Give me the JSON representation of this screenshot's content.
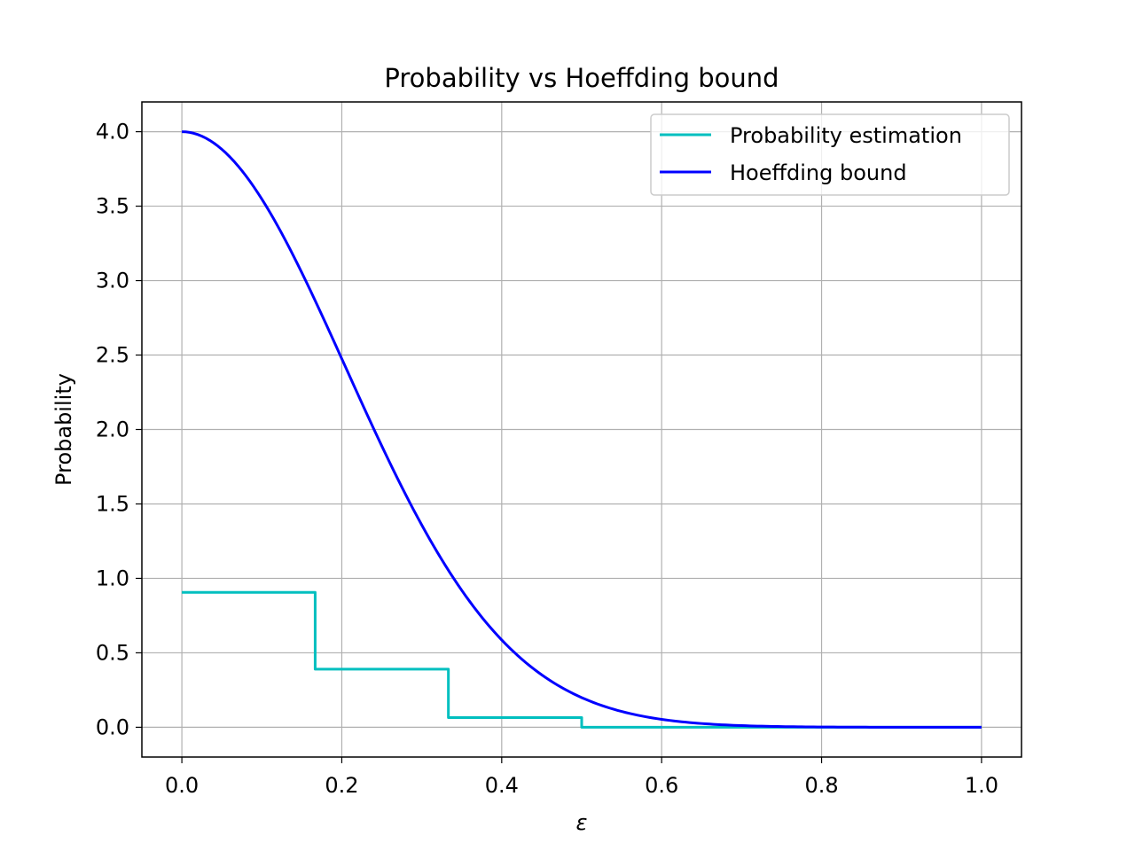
{
  "chart_data": {
    "type": "line",
    "title": "Probability vs Hoeffding bound",
    "xlabel": "ε",
    "ylabel": "Probability",
    "xlim": [
      -0.05,
      1.05
    ],
    "ylim": [
      -0.2,
      4.2
    ],
    "xticks": [
      0.0,
      0.2,
      0.4,
      0.6,
      0.8,
      1.0
    ],
    "xtick_labels": [
      "0.0",
      "0.2",
      "0.4",
      "0.6",
      "0.8",
      "1.0"
    ],
    "yticks": [
      0.0,
      0.5,
      1.0,
      1.5,
      2.0,
      2.5,
      3.0,
      3.5,
      4.0
    ],
    "ytick_labels": [
      "0.0",
      "0.5",
      "1.0",
      "1.5",
      "2.0",
      "2.5",
      "3.0",
      "3.5",
      "4.0"
    ],
    "grid": true,
    "legend_position": "top-right",
    "series": [
      {
        "name": "Probability estimation",
        "color": "#00bfbf",
        "style": "step",
        "x": [
          0.0,
          0.1667,
          0.1667,
          0.3333,
          0.3333,
          0.5,
          0.5,
          1.0
        ],
        "y": [
          0.906,
          0.906,
          0.39,
          0.39,
          0.065,
          0.065,
          0.0,
          0.0
        ]
      },
      {
        "name": "Hoeffding bound",
        "color": "#0000ff",
        "style": "line",
        "x": [
          0.0,
          0.05,
          0.1,
          0.15,
          0.2,
          0.25,
          0.3,
          0.35,
          0.4,
          0.45,
          0.5,
          0.55,
          0.6,
          0.65,
          0.7,
          0.75,
          0.8,
          0.85,
          0.9,
          0.95,
          1.0
        ],
        "y": [
          4.0,
          3.88,
          3.55,
          3.08,
          2.51,
          1.96,
          1.43,
          0.98,
          0.59,
          0.35,
          0.2,
          0.11,
          0.06,
          0.03,
          0.015,
          0.006,
          0.003,
          0.001,
          0.0005,
          0.0002,
          0.0001
        ]
      }
    ]
  }
}
